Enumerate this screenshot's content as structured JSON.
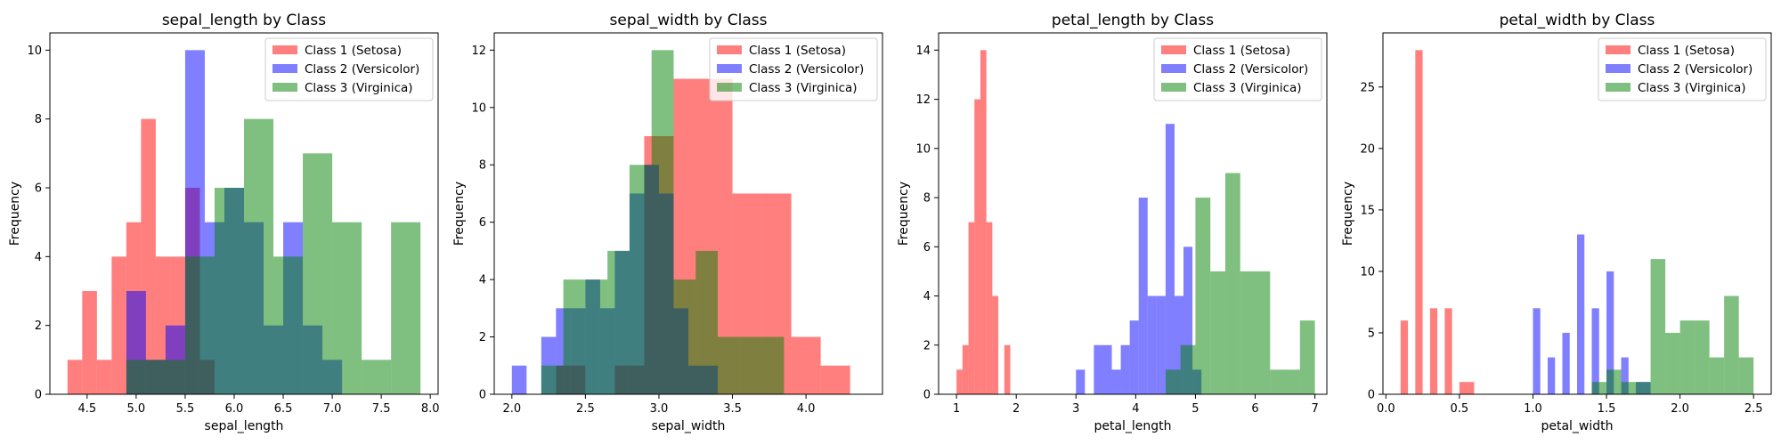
{
  "chart_data": [
    {
      "type": "histogram",
      "title": "sepal_length by Class",
      "xlabel": "sepal_length",
      "ylabel": "Frequency",
      "xlim": [
        4.12,
        8.08
      ],
      "ylim": [
        0,
        10.5
      ],
      "xticks": [
        4.5,
        5.0,
        5.5,
        6.0,
        6.5,
        7.0,
        7.5,
        8.0
      ],
      "xtick_labels": [
        "4.5",
        "5.0",
        "5.5",
        "6.0",
        "6.5",
        "7.0",
        "7.5",
        "8.0"
      ],
      "yticks": [
        0,
        2,
        4,
        6,
        8,
        10
      ],
      "ytick_labels": [
        "0",
        "2",
        "4",
        "6",
        "8",
        "10"
      ],
      "legend_position": "top-right",
      "series": [
        {
          "name": "Class 1 (Setosa)",
          "color": "#ff0000",
          "edges": [
            4.3,
            4.45,
            4.6,
            4.75,
            4.9,
            5.05,
            5.2,
            5.35,
            5.5,
            5.65,
            5.8
          ],
          "counts": [
            1,
            3,
            1,
            4,
            5,
            8,
            4,
            4,
            6,
            1
          ]
        },
        {
          "name": "Class 2 (Versicolor)",
          "color": "#0000ff",
          "edges": [
            4.9,
            5.1,
            5.3,
            5.5,
            5.7,
            5.9,
            6.1,
            6.3,
            6.5,
            6.7,
            6.9,
            7.1
          ],
          "counts": [
            3,
            1,
            2,
            10,
            5,
            6,
            5,
            2,
            5,
            2,
            1
          ]
        },
        {
          "name": "Class 3 (Virginica)",
          "color": "#008000",
          "edges": [
            4.9,
            5.2,
            5.5,
            5.8,
            6.1,
            6.4,
            6.7,
            7.0,
            7.3,
            7.6,
            7.9
          ],
          "counts": [
            1,
            1,
            4,
            6,
            8,
            4,
            7,
            5,
            1,
            5
          ]
        }
      ]
    },
    {
      "type": "histogram",
      "title": "sepal_width by Class",
      "xlabel": "sepal_width",
      "ylabel": "Frequency",
      "xlim": [
        1.88,
        4.52
      ],
      "ylim": [
        0,
        12.6
      ],
      "xticks": [
        2.0,
        2.5,
        3.0,
        3.5,
        4.0
      ],
      "xtick_labels": [
        "2.0",
        "2.5",
        "3.0",
        "3.5",
        "4.0"
      ],
      "yticks": [
        0,
        2,
        4,
        6,
        8,
        10,
        12
      ],
      "ytick_labels": [
        "0",
        "2",
        "4",
        "6",
        "8",
        "10",
        "12"
      ],
      "legend_position": "top-right",
      "series": [
        {
          "name": "Class 1 (Setosa)",
          "color": "#ff0000",
          "edges": [
            2.3,
            2.5,
            2.7,
            2.9,
            3.1,
            3.3,
            3.5,
            3.7,
            3.9,
            4.1,
            4.3
          ],
          "counts": [
            1,
            0,
            1,
            9,
            11,
            11,
            7,
            7,
            2,
            1
          ]
        },
        {
          "name": "Class 2 (Versicolor)",
          "color": "#0000ff",
          "edges": [
            2.0,
            2.1,
            2.2,
            2.3,
            2.4,
            2.5,
            2.6,
            2.7,
            2.8,
            2.9,
            3.0,
            3.1,
            3.2,
            3.3,
            3.4
          ],
          "counts": [
            1,
            0,
            2,
            3,
            3,
            4,
            3,
            5,
            7,
            8,
            7,
            3,
            1,
            1
          ]
        },
        {
          "name": "Class 3 (Virginica)",
          "color": "#008000",
          "edges": [
            2.2,
            2.35,
            2.5,
            2.65,
            2.8,
            2.95,
            3.1,
            3.25,
            3.4,
            3.55,
            3.7,
            3.85
          ],
          "counts": [
            1,
            4,
            4,
            5,
            8,
            12,
            4,
            5,
            2,
            2,
            2
          ]
        }
      ]
    },
    {
      "type": "histogram",
      "title": "petal_length by Class",
      "xlabel": "petal_length",
      "ylabel": "Frequency",
      "xlim": [
        0.7,
        7.2
      ],
      "ylim": [
        0,
        14.7
      ],
      "xticks": [
        1,
        2,
        3,
        4,
        5,
        6,
        7
      ],
      "xtick_labels": [
        "1",
        "2",
        "3",
        "4",
        "5",
        "6",
        "7"
      ],
      "yticks": [
        0,
        2,
        4,
        6,
        8,
        10,
        12,
        14
      ],
      "ytick_labels": [
        "0",
        "2",
        "4",
        "6",
        "8",
        "10",
        "12",
        "14"
      ],
      "legend_position": "top-right",
      "series": [
        {
          "name": "Class 1 (Setosa)",
          "color": "#ff0000",
          "edges": [
            1.0,
            1.1,
            1.2,
            1.3,
            1.4,
            1.5,
            1.6,
            1.7,
            1.8,
            1.9
          ],
          "counts": [
            1,
            2,
            7,
            12,
            14,
            7,
            4,
            0,
            2
          ]
        },
        {
          "name": "Class 2 (Versicolor)",
          "color": "#0000ff",
          "edges": [
            3.0,
            3.15,
            3.3,
            3.45,
            3.6,
            3.75,
            3.9,
            4.05,
            4.2,
            4.35,
            4.5,
            4.65,
            4.8,
            4.95,
            5.1
          ],
          "counts": [
            1,
            0,
            2,
            2,
            1,
            2,
            3,
            8,
            4,
            4,
            11,
            4,
            6,
            1
          ]
        },
        {
          "name": "Class 3 (Virginica)",
          "color": "#008000",
          "edges": [
            4.5,
            4.75,
            5.0,
            5.25,
            5.5,
            5.75,
            6.0,
            6.25,
            6.5,
            6.75,
            7.0
          ],
          "counts": [
            1,
            2,
            8,
            5,
            9,
            5,
            5,
            1,
            1,
            3
          ]
        }
      ]
    },
    {
      "type": "histogram",
      "title": "petal_width by Class",
      "xlabel": "petal_width",
      "ylabel": "Frequency",
      "xlim": [
        -0.02,
        2.62
      ],
      "ylim": [
        0,
        29.4
      ],
      "xticks": [
        0.0,
        0.5,
        1.0,
        1.5,
        2.0,
        2.5
      ],
      "xtick_labels": [
        "0.0",
        "0.5",
        "1.0",
        "1.5",
        "2.0",
        "2.5"
      ],
      "yticks": [
        0,
        5,
        10,
        15,
        20,
        25
      ],
      "ytick_labels": [
        "0",
        "5",
        "10",
        "15",
        "20",
        "25"
      ],
      "legend_position": "top-right",
      "series": [
        {
          "name": "Class 1 (Setosa)",
          "color": "#ff0000",
          "edges": [
            0.1,
            0.15,
            0.2,
            0.25,
            0.3,
            0.35,
            0.4,
            0.45,
            0.5,
            0.55,
            0.6
          ],
          "counts": [
            6,
            0,
            28,
            0,
            7,
            0,
            7,
            0,
            1,
            1
          ]
        },
        {
          "name": "Class 2 (Versicolor)",
          "color": "#0000ff",
          "edges": [
            1.0,
            1.05,
            1.1,
            1.15,
            1.2,
            1.25,
            1.3,
            1.35,
            1.4,
            1.45,
            1.5,
            1.55,
            1.6,
            1.65,
            1.7,
            1.75,
            1.8
          ],
          "counts": [
            7,
            0,
            3,
            0,
            5,
            0,
            13,
            0,
            7,
            0,
            10,
            0,
            3,
            0,
            1,
            1
          ]
        },
        {
          "name": "Class 3 (Virginica)",
          "color": "#008000",
          "edges": [
            1.4,
            1.5,
            1.6,
            1.7,
            1.8,
            1.9,
            2.0,
            2.1,
            2.2,
            2.3,
            2.4,
            2.5
          ],
          "counts": [
            1,
            2,
            1,
            1,
            11,
            5,
            6,
            6,
            3,
            8,
            3
          ]
        }
      ]
    }
  ]
}
